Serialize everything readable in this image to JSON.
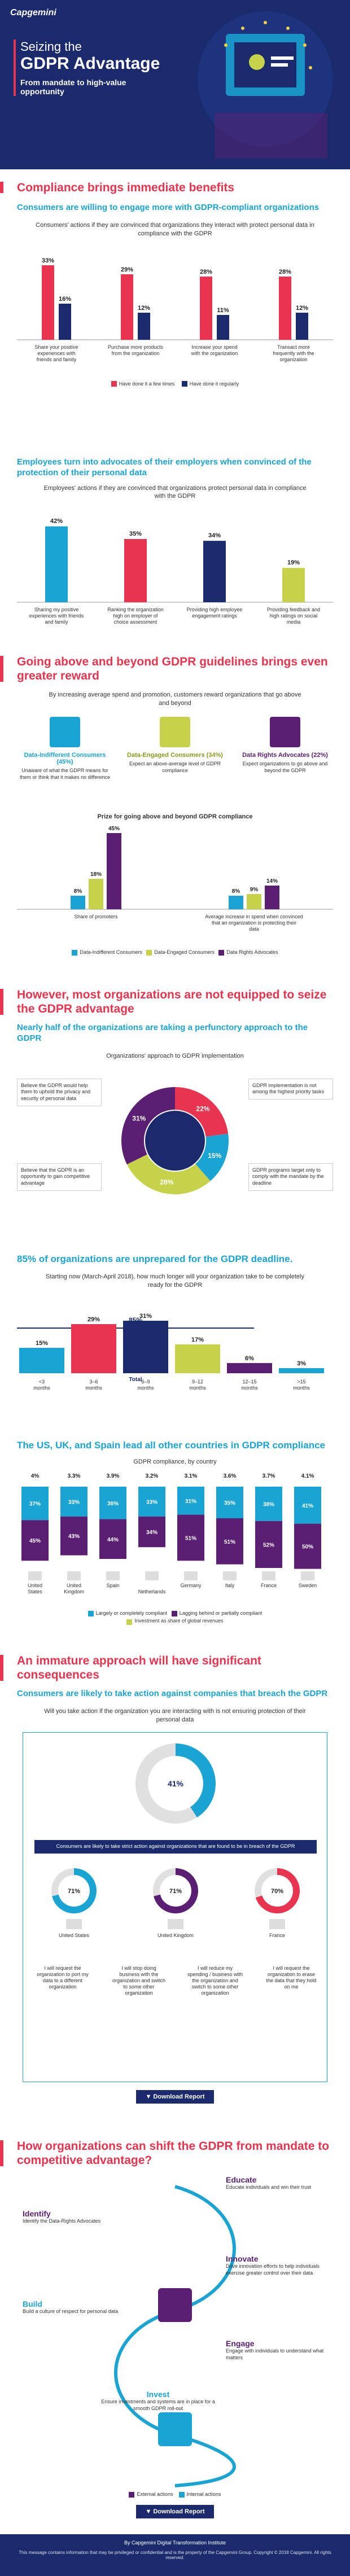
{
  "hero": {
    "logo": "Capgemini",
    "title_line1": "Seizing the",
    "title_line2": "GDPR Advantage",
    "subtitle": "From mandate to high-value opportunity"
  },
  "s1": {
    "heading": "Compliance brings immediate benefits",
    "sub": "Consumers are willing to engage more with GDPR-compliant organizations",
    "desc": "Consumers' actions if they are convinced that organizations they interact with protect personal data in compliance with the GDPR",
    "legend_a": "Have done it a few times",
    "legend_b": "Have done it regularly",
    "colors": {
      "a": "#e8344e",
      "b": "#1a2a6c"
    }
  },
  "chart1": {
    "type": "bar",
    "categories": [
      "Share your positive experiences with friends and family",
      "Purchase more products from the organization",
      "Increase your spend with the organization",
      "Transact more frequently with the organization"
    ],
    "series": [
      {
        "name": "Have done it a few times",
        "values": [
          33,
          29,
          28,
          28
        ]
      },
      {
        "name": "Have done it regularly",
        "values": [
          16,
          12,
          11,
          12
        ]
      }
    ],
    "labels_a": [
      "33%",
      "29%",
      "28%",
      "28%"
    ],
    "labels_b": [
      "16%",
      "12%",
      "11%",
      "12%"
    ]
  },
  "s2": {
    "sub": "Employees turn into advocates of their employers when convinced of the protection of their personal data",
    "desc": "Employees' actions if they are convinced that organizations protect personal data in compliance with the GDPR"
  },
  "chart2": {
    "type": "bar",
    "categories": [
      "Sharing my positive experiences with friends and family",
      "Ranking the organization high on employer of choice assessment",
      "Providing high employee engagement ratings",
      "Providing feedback and high ratings on social media"
    ],
    "values": [
      42,
      35,
      34,
      19
    ],
    "labels": [
      "42%",
      "35%",
      "34%",
      "19%"
    ]
  },
  "s3": {
    "heading": "Going above and beyond GDPR guidelines brings even greater reward",
    "desc": "By increasing average spend and promotion, customers reward organizations that go above and beyond",
    "seg1_title": "Data-Indifferent Consumers (45%)",
    "seg1_desc": "Unaware of what the GDPR means for them or think that it makes no difference",
    "seg2_title": "Data-Engaged Consumers (34%)",
    "seg2_desc": "Expect an above-average level of GDPR compliance",
    "seg3_title": "Data Rights Advocates (22%)",
    "seg3_desc": "Expect organizations to go above and beyond the GDPR",
    "prize": "Prize for going above and beyond GDPR compliance",
    "legend": [
      "Data-Indifferent Consumers",
      "Data-Engaged Consumers",
      "Data Rights Advocates"
    ],
    "colors": [
      "#1aa4d3",
      "#c6d34a",
      "#5a1f73"
    ]
  },
  "chart3": {
    "type": "bar",
    "categories": [
      "Share of promoters",
      "Average increase in spend when convinced that an organization is protecting their data"
    ],
    "series": [
      {
        "name": "Data-Indifferent Consumers",
        "values": [
          8,
          8
        ]
      },
      {
        "name": "Data-Engaged Consumers",
        "values": [
          18,
          9
        ]
      },
      {
        "name": "Data Rights Advocates",
        "values": [
          45,
          14
        ]
      }
    ],
    "labels": [
      [
        "8%",
        "18%",
        "45%"
      ],
      [
        "8%",
        "9%",
        "14%"
      ]
    ]
  },
  "s4": {
    "heading": "However, most organizations are not equipped to seize the GDPR advantage",
    "sub": "Nearly half of the organizations are taking a perfunctory approach to the GDPR",
    "desc": "Organizations' approach to GDPR implementation",
    "q1": "Believe the GDPR would help them to uphold the privacy and security of personal data",
    "q2": "GDPR implementation is not among the highest priority tasks",
    "q3": "Believe that the GDPR is an opportunity to gain competitive advantage",
    "q4": "GDPR programs target only to comply with the mandate by the deadline",
    "labels": [
      "22%",
      "15%",
      "28%",
      "31%"
    ]
  },
  "chart4": {
    "type": "pie",
    "categories": [
      "Believe the GDPR would help them to uphold the privacy and security of personal data",
      "GDPR implementation is not among the highest priority tasks",
      "Believe that the GDPR is an opportunity to gain competitive advantage",
      "GDPR programs target only to comply with the mandate by the deadline"
    ],
    "values": [
      22,
      15,
      28,
      31
    ],
    "colors": [
      "#e8344e",
      "#1aa4d3",
      "#c6d34a",
      "#5a1f73"
    ]
  },
  "s5": {
    "heading": "85% of organizations are unprepared for the GDPR deadline.",
    "desc": "Starting now (March-April 2018), how much longer will your organization take to be completely ready for the GDPR",
    "total_label": "85%",
    "total": "Total"
  },
  "chart5": {
    "type": "bar",
    "categories": [
      "<3 months",
      "3–6 months",
      "6–9 months",
      "9–12 months",
      "12–15 months",
      ">15 months"
    ],
    "values": [
      15,
      29,
      31,
      17,
      6,
      3
    ],
    "labels": [
      "15%",
      "29%",
      "31%",
      "17%",
      "6%",
      "3%"
    ],
    "colors": [
      "#1aa4d3",
      "#e8344e",
      "#1a2a6c",
      "#c6d34a",
      "#5a1f73",
      "#1aa4d3"
    ]
  },
  "s6": {
    "heading": "The US, UK, and Spain lead all other countries in GDPR compliance",
    "desc": "GDPR compliance, by country",
    "legend_a": "Largely or completely compliant",
    "legend_b": "Lagging behind or partially compliant",
    "legend_c": "Investment as share of global revenues"
  },
  "chart6": {
    "type": "bar",
    "categories": [
      "United States",
      "United Kingdom",
      "Spain",
      "Netherlands",
      "Germany",
      "Italy",
      "France",
      "Sweden"
    ],
    "investment": [
      "4%",
      "3.3%",
      "3.9%",
      "3.2%",
      "3.1%",
      "3.6%",
      "3.7%",
      "4.1%"
    ],
    "series": [
      {
        "name": "Largely or completely compliant",
        "values": [
          37,
          33,
          36,
          33,
          31,
          35,
          38,
          41
        ]
      },
      {
        "name": "Lagging behind or partially compliant",
        "values": [
          45,
          43,
          44,
          34,
          51,
          51,
          52,
          50
        ]
      }
    ],
    "labels_a": [
      "37%",
      "33%",
      "36%",
      "33%",
      "31%",
      "35%",
      "38%",
      "41%"
    ],
    "labels_b": [
      "45%",
      "43%",
      "44%",
      "34%",
      "51%",
      "51%",
      "52%",
      "50%"
    ]
  },
  "s7": {
    "heading": "An immature approach will have significant consequences",
    "sub": "Consumers are likely to take action against companies that breach the GDPR",
    "desc": "Will you take action if the organization you are interacting with is not ensuring protection of their personal data",
    "donut_caption": "Consumers are likely to take strict action against organizations that are found to be in breach of the GDPR",
    "country_labels": [
      "United States",
      "United Kingdom",
      "France"
    ],
    "actions": [
      "I will request the organization to port my data to a different organization",
      "I will stop doing business with the organization and switch to some other organization",
      "I will reduce my spending / business with the organization and switch to some other organization",
      "I will request the organization to erase the data that they hold on me"
    ],
    "donut_labels": [
      "41%",
      "71%",
      "71%",
      "70%"
    ]
  },
  "s8": {
    "heading": "How organizations can shift the GDPR from mandate to competitive advantage?",
    "steps": [
      {
        "title": "Identify",
        "desc": "Identify the Data-Rights Advocates"
      },
      {
        "title": "Build",
        "desc": "Build a culture of respect for personal data"
      },
      {
        "title": "Invest",
        "desc": "Ensure investments and systems are in place for a smooth GDPR roll-out"
      },
      {
        "title": "Educate",
        "desc": "Educate individuals and win their trust"
      },
      {
        "title": "Innovate",
        "desc": "Drive innovation efforts to help individuals exercise greater control over their data"
      },
      {
        "title": "Engage",
        "desc": "Engage with individuals to understand what matters"
      }
    ],
    "legend_a": "External actions",
    "legend_b": "Internal actions",
    "download": "Download Report"
  },
  "footer": {
    "institute": "By Capgemini Digital Transformation Institute",
    "legal": "This message contains information that may be privileged or confidential and is the property of the Capgemini Group. Copyright © 2018 Capgemini. All rights reserved."
  }
}
